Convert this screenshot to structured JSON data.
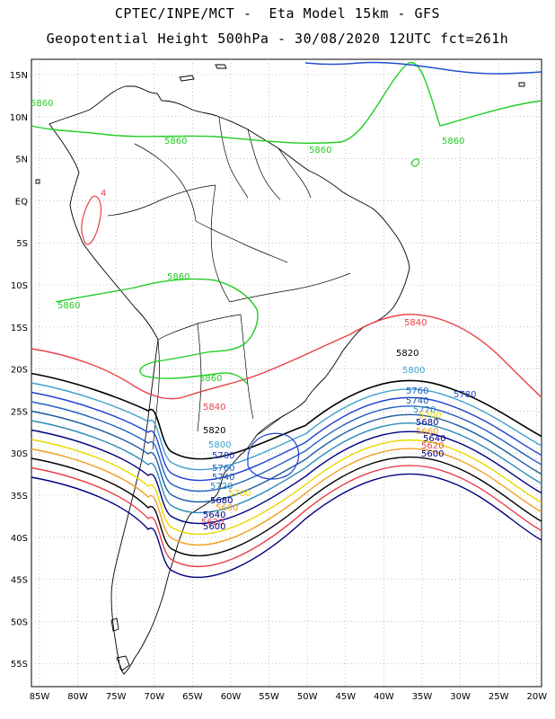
{
  "title": {
    "line1": "CPTEC/INPE/MCT -  Eta Model 15km - GFS",
    "line2": "Geopotential Height 500hPa - 30/08/2020 12UTC fct=261h"
  },
  "axes": {
    "lat_labels": [
      "15N",
      "10N",
      "5N",
      "EQ",
      "5S",
      "10S",
      "15S",
      "20S",
      "25S",
      "30S",
      "35S",
      "40S",
      "45S",
      "50S",
      "55S"
    ],
    "lon_labels": [
      "85W",
      "80W",
      "75W",
      "70W",
      "65W",
      "60W",
      "55W",
      "50W",
      "45W",
      "40W",
      "35W",
      "30W",
      "25W",
      "20W"
    ]
  },
  "contour_levels": [
    {
      "value": "5600",
      "color": "#000080"
    },
    {
      "value": "5620",
      "color": "#e8404a"
    },
    {
      "value": "5640",
      "color": "#000000"
    },
    {
      "value": "5660",
      "color": "#f0a020"
    },
    {
      "value": "5680",
      "color": "#e8d800"
    },
    {
      "value": "5700",
      "color": "#000080"
    },
    {
      "value": "5720",
      "color": "#2a8ab8"
    },
    {
      "value": "5740",
      "color": "#1a5aa0"
    },
    {
      "value": "5760",
      "color": "#2060c0"
    },
    {
      "value": "5780",
      "color": "#2040d0"
    },
    {
      "value": "5800",
      "color": "#40a0d0"
    },
    {
      "value": "5820",
      "color": "#000000"
    },
    {
      "value": "5840",
      "color": "#e8404a"
    },
    {
      "value": "5860",
      "color": "#22cc22"
    }
  ],
  "contour_labels": {
    "c5860_a": "5860",
    "c5860_b": "5860",
    "c5860_c": "5860",
    "c5860_d": "5860",
    "c5860_e": "5860",
    "c5860_f": "5860",
    "c5860_g": "5860",
    "c5840_a": "5840",
    "c5840_b": "5840",
    "c5820_a": "5820",
    "c5820_b": "5820",
    "c5800_a": "5800",
    "c5800_b": "5800",
    "c5780_a": "5780",
    "c5780_b": "5780",
    "c5760_a": "5760",
    "c5760_b": "5760",
    "c5740_a": "5740",
    "c5740_b": "5740",
    "c5720_a": "5720",
    "c5720_b": "5720",
    "c5700_a": "5700",
    "c5700_b": "5700",
    "c5680_a": "5680",
    "c5680_b": "5680",
    "c5660_a": "5660",
    "c5660_b": "5660",
    "c5640_a": "5640",
    "c5640_b": "5640",
    "c5620_a": "5620",
    "c5620_b": "5620",
    "c5600_a": "5600",
    "c5600_b": "5600",
    "small_low": "4"
  }
}
